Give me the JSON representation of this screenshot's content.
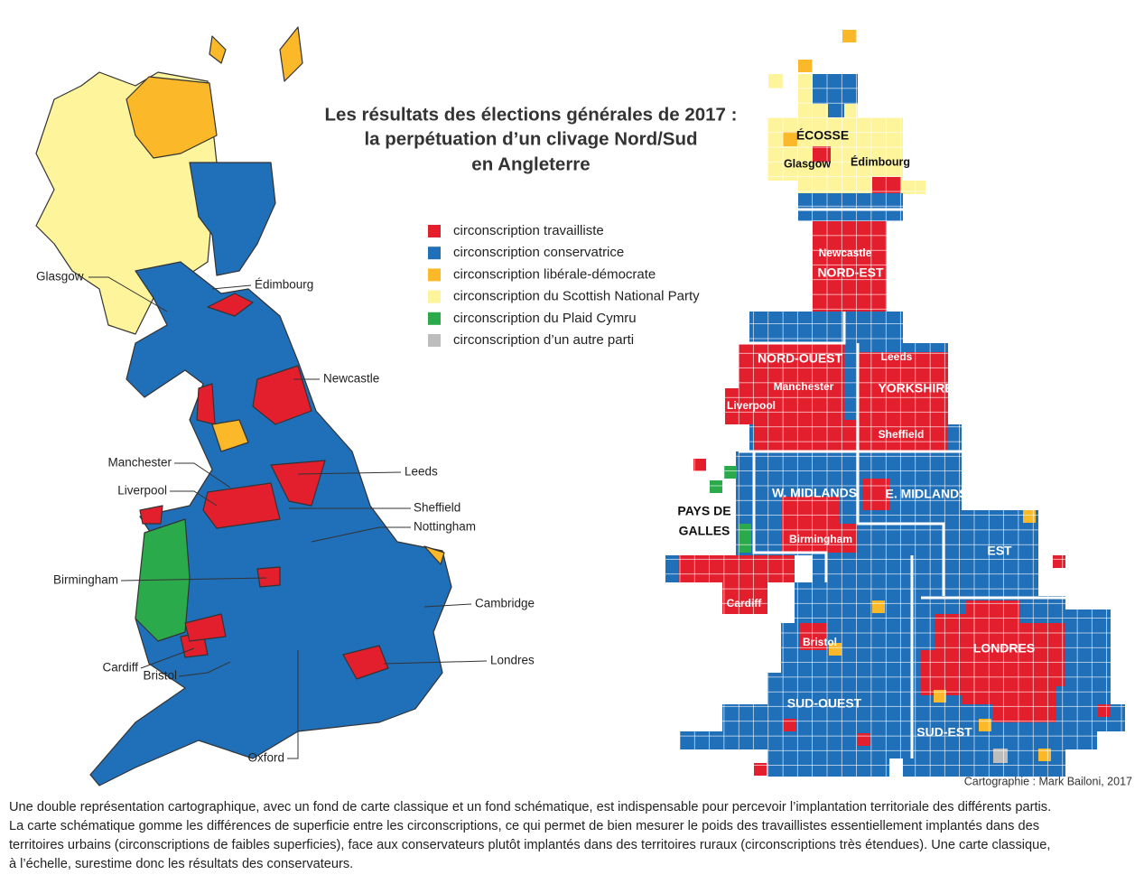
{
  "title": [
    "Les résultats des élections générales de 2017 :",
    "la perpétuation d’un clivage Nord/Sud",
    "en Angleterre"
  ],
  "legend": [
    {
      "label": "circonscription travailliste",
      "color": "#e41f2d"
    },
    {
      "label": "circonscription conservatrice",
      "color": "#1f6fb9"
    },
    {
      "label": "circonscription libérale-démocrate",
      "color": "#fbb828"
    },
    {
      "label": "circonscription du Scottish National Party",
      "color": "#fef49c"
    },
    {
      "label": "circonscription du Plaid Cymru",
      "color": "#2aaa4a"
    },
    {
      "label": "circonscription d’un autre parti",
      "color": "#bdbdbd"
    }
  ],
  "classic_map_labels": [
    "Glasgow",
    "Édimbourg",
    "Newcastle",
    "Manchester",
    "Leeds",
    "Liverpool",
    "Sheffield",
    "Nottingham",
    "Birmingham",
    "Cambridge",
    "Cardiff",
    "Londres",
    "Bristol",
    "Oxford"
  ],
  "schematic_map_labels": [
    "ÉCOSSE",
    "Glasgow",
    "Édimbourg",
    "Newcastle",
    "NORD-EST",
    "NORD-OUEST",
    "Leeds",
    "Manchester",
    "YORKSHIRE & H.",
    "Liverpool",
    "Sheffield",
    "W. MIDLANDS",
    "E. MIDLANDS",
    "PAYS DE",
    "GALLES",
    "Birmingham",
    "EST",
    "Cardiff",
    "Bristol",
    "LONDRES",
    "SUD-OUEST",
    "SUD-EST"
  ],
  "credit": "Cartographie : Mark Bailoni, 2017",
  "caption": [
    "Une double représentation cartographique, avec un fond de carte classique et un fond schématique, est indispensable pour percevoir l’implantation territoriale des différents partis.",
    "La carte schématique gomme les différences de superficie entre les circonscriptions, ce qui permet de bien mesurer le poids des travaillistes essentiellement implantés dans des",
    "territoires urbains (circonscriptions de faibles superficies), face aux conservateurs plutôt implantés dans des territoires ruraux (circonscriptions très étendues). Une carte classique,",
    "à l’échelle, surestime donc les résultats des conservateurs."
  ]
}
